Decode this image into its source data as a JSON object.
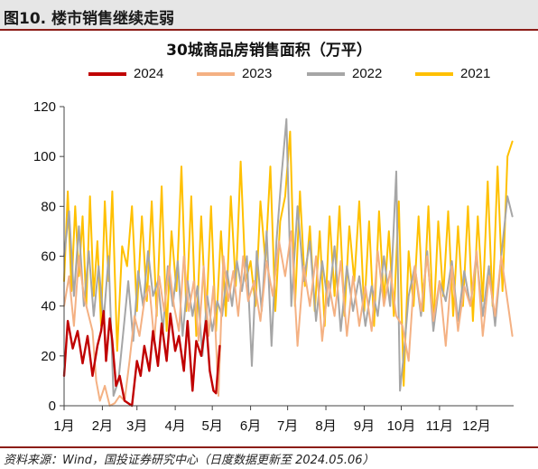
{
  "figure": {
    "title": "图10. 楼市销售继续走弱",
    "source": "资料来源：Wind，国投证券研究中心（日度数据更新至 2024.05.06）"
  },
  "chart_data": {
    "type": "line",
    "title": "30城商品房销售面积（万平）",
    "xlabel": "",
    "ylabel": "",
    "x_unit": "day-of-year",
    "xlim": [
      1,
      365
    ],
    "ylim": [
      0,
      120
    ],
    "yticks": [
      "0",
      "20",
      "40",
      "60",
      "80",
      "100",
      "120"
    ],
    "xticks": [
      {
        "label": "1月",
        "day": 1
      },
      {
        "label": "2月",
        "day": 32
      },
      {
        "label": "3月",
        "day": 60
      },
      {
        "label": "4月",
        "day": 91
      },
      {
        "label": "5月",
        "day": 121
      },
      {
        "label": "6月",
        "day": 152
      },
      {
        "label": "7月",
        "day": 182
      },
      {
        "label": "8月",
        "day": 213
      },
      {
        "label": "9月",
        "day": 244
      },
      {
        "label": "10月",
        "day": 274
      },
      {
        "label": "11月",
        "day": 305
      },
      {
        "label": "12月",
        "day": 335
      }
    ],
    "legend_position": "top",
    "grid": false,
    "series": [
      {
        "name": "2024",
        "color": "#c00000",
        "x": [
          1,
          4,
          8,
          12,
          16,
          20,
          24,
          28,
          31,
          33,
          35,
          38,
          40,
          43,
          46,
          50,
          53,
          56,
          60,
          63,
          66,
          70,
          73,
          77,
          80,
          84,
          87,
          91,
          94,
          98,
          101,
          105,
          108,
          112,
          116,
          119,
          122,
          124,
          127
        ],
        "y": [
          12,
          34,
          23,
          30,
          17,
          28,
          12,
          24,
          30,
          38,
          18,
          35,
          26,
          8,
          12,
          2,
          1,
          0,
          18,
          12,
          24,
          14,
          30,
          16,
          33,
          18,
          37,
          22,
          28,
          14,
          34,
          6,
          26,
          20,
          34,
          14,
          6,
          5,
          24
        ]
      },
      {
        "name": "2023",
        "color": "#f4b183",
        "x": [
          1,
          5,
          9,
          13,
          17,
          21,
          24,
          27,
          30,
          34,
          38,
          42,
          46,
          50,
          54,
          58,
          62,
          66,
          70,
          74,
          78,
          82,
          86,
          90,
          94,
          98,
          102,
          106,
          110,
          114,
          118,
          122,
          126,
          130,
          134,
          138,
          142,
          146,
          150,
          155,
          160,
          165,
          170,
          175,
          180,
          185,
          190,
          195,
          200,
          205,
          210,
          215,
          220,
          225,
          230,
          235,
          240,
          245,
          250,
          255,
          260,
          265,
          270,
          275,
          280,
          285,
          290,
          295,
          300,
          305,
          310,
          315,
          320,
          325,
          330,
          335,
          340,
          345,
          350,
          355,
          360,
          364
        ],
        "y": [
          40,
          52,
          32,
          60,
          44,
          36,
          30,
          10,
          2,
          8,
          0,
          1,
          4,
          2,
          18,
          36,
          28,
          42,
          48,
          26,
          52,
          38,
          56,
          40,
          30,
          60,
          38,
          50,
          26,
          56,
          28,
          48,
          4,
          60,
          42,
          54,
          36,
          60,
          42,
          50,
          34,
          58,
          44,
          66,
          52,
          70,
          24,
          56,
          40,
          60,
          26,
          50,
          36,
          58,
          28,
          52,
          32,
          48,
          30,
          62,
          40,
          54,
          36,
          32,
          18,
          56,
          38,
          60,
          34,
          50,
          24,
          56,
          30,
          48,
          40,
          62,
          28,
          52,
          36,
          60,
          42,
          28
        ]
      },
      {
        "name": "2022",
        "color": "#a6a6a6",
        "x": [
          1,
          5,
          9,
          13,
          17,
          21,
          25,
          29,
          33,
          37,
          41,
          45,
          49,
          53,
          57,
          61,
          65,
          69,
          73,
          77,
          81,
          85,
          89,
          93,
          97,
          101,
          105,
          109,
          113,
          117,
          121,
          125,
          129,
          133,
          137,
          141,
          145,
          149,
          153,
          157,
          161,
          165,
          169,
          173,
          177,
          181,
          185,
          190,
          195,
          200,
          205,
          210,
          215,
          220,
          225,
          230,
          235,
          240,
          245,
          250,
          255,
          260,
          265,
          270,
          273,
          276,
          280,
          285,
          290,
          295,
          300,
          305,
          310,
          315,
          320,
          325,
          330,
          335,
          340,
          345,
          350,
          355,
          360,
          364
        ],
        "y": [
          60,
          78,
          44,
          72,
          40,
          62,
          36,
          56,
          34,
          60,
          4,
          10,
          30,
          50,
          26,
          54,
          40,
          62,
          44,
          50,
          30,
          56,
          40,
          58,
          28,
          50,
          36,
          48,
          20,
          44,
          30,
          42,
          36,
          54,
          40,
          58,
          46,
          60,
          16,
          62,
          38,
          70,
          24,
          66,
          92,
          115,
          40,
          80,
          50,
          66,
          34,
          58,
          40,
          64,
          30,
          56,
          38,
          52,
          32,
          48,
          36,
          60,
          40,
          94,
          6,
          20,
          44,
          56,
          36,
          62,
          30,
          50,
          42,
          58,
          34,
          54,
          40,
          60,
          36,
          56,
          32,
          60,
          84,
          76
        ]
      },
      {
        "name": "2021",
        "color": "#ffc000",
        "x": [
          1,
          4,
          7,
          10,
          13,
          16,
          19,
          22,
          25,
          28,
          31,
          34,
          37,
          40,
          44,
          48,
          52,
          56,
          60,
          64,
          68,
          72,
          76,
          80,
          84,
          88,
          92,
          96,
          100,
          104,
          108,
          112,
          116,
          120,
          124,
          128,
          132,
          136,
          140,
          144,
          148,
          152,
          156,
          160,
          164,
          168,
          172,
          176,
          180,
          184,
          188,
          192,
          196,
          200,
          204,
          208,
          212,
          216,
          220,
          224,
          228,
          232,
          236,
          240,
          244,
          248,
          252,
          256,
          260,
          264,
          268,
          272,
          276,
          280,
          284,
          288,
          292,
          296,
          300,
          304,
          308,
          312,
          316,
          320,
          324,
          328,
          332,
          336,
          340,
          344,
          348,
          352,
          356,
          360,
          364
        ],
        "y": [
          50,
          86,
          46,
          80,
          52,
          76,
          40,
          84,
          44,
          66,
          32,
          82,
          50,
          86,
          22,
          64,
          56,
          80,
          38,
          76,
          42,
          82,
          36,
          88,
          30,
          70,
          46,
          96,
          38,
          84,
          28,
          76,
          34,
          80,
          30,
          70,
          36,
          84,
          48,
          98,
          50,
          58,
          40,
          82,
          58,
          96,
          38,
          74,
          84,
          110,
          40,
          86,
          48,
          72,
          38,
          70,
          32,
          76,
          44,
          80,
          36,
          72,
          50,
          82,
          38,
          74,
          32,
          78,
          42,
          70,
          36,
          82,
          8,
          62,
          40,
          76,
          38,
          80,
          32,
          74,
          44,
          78,
          36,
          72,
          40,
          80,
          34,
          76,
          42,
          90,
          40,
          96,
          46,
          100,
          106
        ]
      }
    ]
  }
}
